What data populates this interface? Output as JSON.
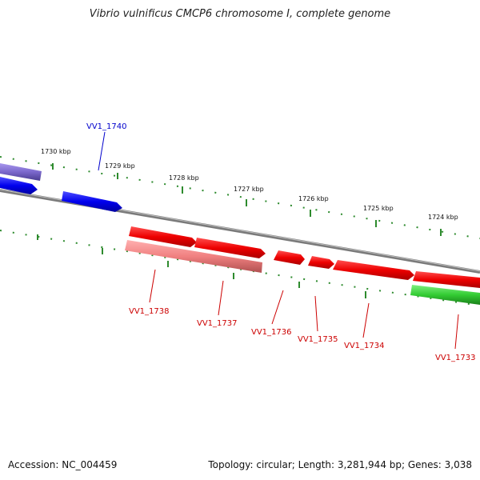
{
  "title": "Vibrio vulnificus CMCP6 chromosome I, complete genome",
  "footer": {
    "accession": "Accession: NC_004459",
    "summary": "Topology: circular; Length: 3,281,944 bp; Genes: 3,038"
  },
  "colors": {
    "forward_gene": "#ff0000",
    "reverse_gene": "#f08080",
    "blue_gene": "#0000ee",
    "purple_gene": "#7b68cc",
    "green_gene": "#33cc33",
    "backbone": "#808080",
    "tick": "#2e8b2e"
  },
  "scale_ticks_kbp": [
    "1730 kbp",
    "1729 kbp",
    "1728 kbp",
    "1727 kbp",
    "1726 kbp",
    "1725 kbp",
    "1724 kbp"
  ],
  "gene_labels": [
    {
      "name": "VV1_1740",
      "color": "#0000cc"
    },
    {
      "name": "VV1_1738",
      "color": "#cc0000"
    },
    {
      "name": "VV1_1737",
      "color": "#cc0000"
    },
    {
      "name": "VV1_1736",
      "color": "#cc0000"
    },
    {
      "name": "VV1_1735",
      "color": "#cc0000"
    },
    {
      "name": "VV1_1734",
      "color": "#cc0000"
    },
    {
      "name": "VV1_1733",
      "color": "#cc0000"
    }
  ]
}
